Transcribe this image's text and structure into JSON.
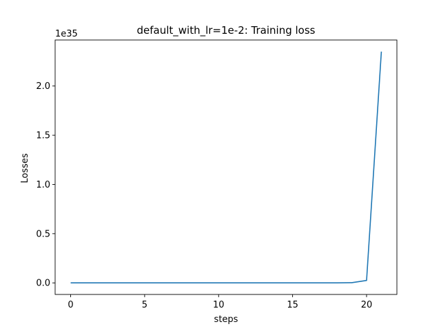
{
  "chart_data": {
    "type": "line",
    "title": "default_with_lr=1e-2: Training loss",
    "xlabel": "steps",
    "ylabel": "Losses",
    "y_offset_label": "1e35",
    "xlim": [
      -1.05,
      22.05
    ],
    "ylim": [
      -0.1175,
      2.4675
    ],
    "x_ticks": [
      0,
      5,
      10,
      15,
      20
    ],
    "x_tick_labels": [
      "0",
      "5",
      "10",
      "15",
      "20"
    ],
    "y_ticks": [
      0.0,
      0.5,
      1.0,
      1.5,
      2.0
    ],
    "y_tick_labels": [
      "0.0",
      "0.5",
      "1.0",
      "1.5",
      "2.0"
    ],
    "grid": false,
    "line_color": "#1f77b4",
    "series": [
      {
        "x": [
          0,
          1,
          2,
          3,
          4,
          5,
          6,
          7,
          8,
          9,
          10,
          11,
          12,
          13,
          14,
          15,
          16,
          17,
          18,
          19,
          20,
          21
        ],
        "values": [
          0,
          0,
          0,
          0,
          0,
          0,
          0,
          0,
          0,
          0,
          0,
          0,
          0,
          0,
          0,
          0,
          0,
          0,
          0.0001,
          0.002,
          0.025,
          2.35
        ]
      }
    ]
  }
}
